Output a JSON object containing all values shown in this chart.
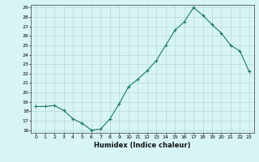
{
  "x": [
    0,
    1,
    2,
    3,
    4,
    5,
    6,
    7,
    8,
    9,
    10,
    11,
    12,
    13,
    14,
    15,
    16,
    17,
    18,
    19,
    20,
    21,
    22,
    23
  ],
  "y": [
    18.5,
    18.5,
    18.6,
    18.1,
    17.2,
    16.7,
    16.0,
    16.1,
    17.2,
    18.8,
    20.6,
    21.4,
    22.3,
    23.4,
    25.0,
    26.6,
    27.5,
    29.0,
    28.2,
    27.2,
    26.3,
    25.0,
    24.4,
    22.2
  ],
  "title": "",
  "xlabel": "Humidex (Indice chaleur)",
  "ylabel": "",
  "line_color": "#1a7a5e",
  "bg_color": "#d8f5f5",
  "grid_color": "#b8d8d8",
  "ylim": [
    16,
    29
  ],
  "xlim": [
    -0.5,
    23.5
  ],
  "yticks": [
    16,
    17,
    18,
    19,
    20,
    21,
    22,
    23,
    24,
    25,
    26,
    27,
    28,
    29
  ],
  "xticks": [
    0,
    1,
    2,
    3,
    4,
    5,
    6,
    7,
    8,
    9,
    10,
    11,
    12,
    13,
    14,
    15,
    16,
    17,
    18,
    19,
    20,
    21,
    22,
    23
  ]
}
